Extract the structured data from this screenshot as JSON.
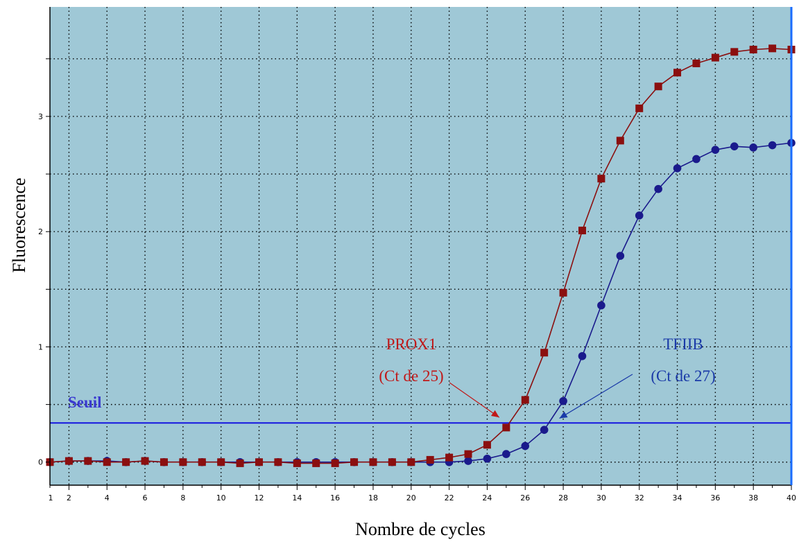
{
  "chart_data": {
    "type": "line",
    "xlabel": "Nombre de cycles",
    "ylabel": "Fluorescence",
    "xlim": [
      1,
      40
    ],
    "ylim": [
      -0.2,
      3.95
    ],
    "x_ticks": [
      2,
      4,
      6,
      8,
      10,
      12,
      14,
      16,
      18,
      20,
      22,
      24,
      26,
      28,
      30,
      32,
      34,
      36,
      38,
      40
    ],
    "y_ticks": [
      0,
      1,
      2,
      3
    ],
    "grid": true,
    "background": "#9fc8d6",
    "threshold": {
      "label": "Seuil",
      "value": 0.34,
      "color": "#1414e0"
    },
    "x": [
      1,
      2,
      3,
      4,
      5,
      6,
      7,
      8,
      9,
      10,
      11,
      12,
      13,
      14,
      15,
      16,
      17,
      18,
      19,
      20,
      21,
      22,
      23,
      24,
      25,
      26,
      27,
      28,
      29,
      30,
      31,
      32,
      33,
      34,
      35,
      36,
      37,
      38,
      39,
      40
    ],
    "series": [
      {
        "name": "TFIIB",
        "color": "#1a1a8c",
        "marker": "circle",
        "values": [
          0,
          0.01,
          0.01,
          0.01,
          0,
          0.01,
          0,
          0,
          0,
          0,
          0,
          0,
          0,
          0,
          0,
          0,
          0,
          0,
          0,
          0,
          0,
          0,
          0.01,
          0.03,
          0.07,
          0.14,
          0.28,
          0.53,
          0.92,
          1.36,
          1.79,
          2.14,
          2.37,
          2.55,
          2.63,
          2.71,
          2.74,
          2.73,
          2.75,
          2.77
        ]
      },
      {
        "name": "PROX1",
        "color": "#8b0f0f",
        "marker": "square",
        "values": [
          0,
          0.01,
          0.01,
          0,
          0,
          0.01,
          0,
          0,
          0,
          0,
          -0.01,
          0,
          0,
          -0.01,
          -0.01,
          -0.01,
          0,
          0,
          0,
          0,
          0.02,
          0.04,
          0.07,
          0.15,
          0.3,
          0.54,
          0.95,
          1.47,
          2.01,
          2.46,
          2.79,
          3.07,
          3.26,
          3.38,
          3.46,
          3.51,
          3.56,
          3.58,
          3.59,
          3.58
        ]
      }
    ],
    "annotations": [
      {
        "series": "PROX1",
        "line1": "PROX1",
        "line2": "(Ct de 25)",
        "color": "#c01818",
        "target_x": 25.0,
        "target_y": 0.34
      },
      {
        "series": "TFIIB",
        "line1": "TFIIB",
        "line2": "(Ct de 27)",
        "color": "#1a3aa8",
        "target_x": 27.8,
        "target_y": 0.38
      }
    ]
  }
}
